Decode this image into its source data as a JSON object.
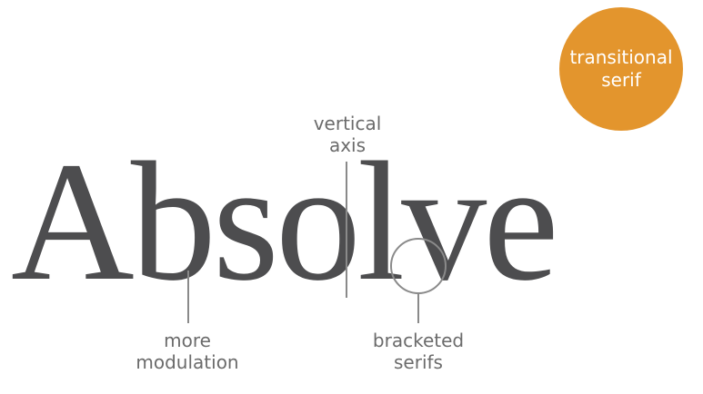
{
  "badge": {
    "line1": "transitional",
    "line2": "serif",
    "color": "#e3952d"
  },
  "specimen": {
    "word": "Absolve",
    "color": "#4d4d4f"
  },
  "annotations": {
    "vertical_axis": {
      "line1": "vertical",
      "line2": "axis"
    },
    "modulation": {
      "line1": "more",
      "line2": "modulation"
    },
    "bracketed_serifs": {
      "line1": "bracketed",
      "line2": "serifs"
    },
    "color": "#6b6b6b",
    "line_color": "#8a8a8a"
  }
}
